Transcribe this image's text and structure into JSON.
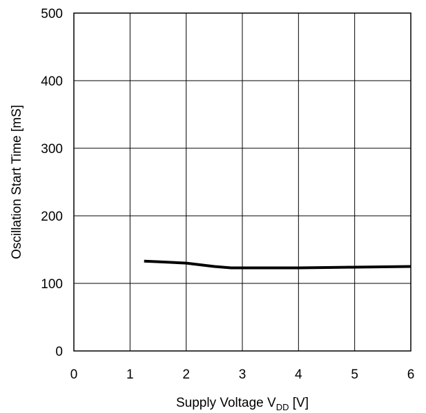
{
  "chart_data": {
    "type": "line",
    "title": "",
    "xlabel": {
      "main": "Supply Voltage V",
      "sub": "DD",
      "unit": " [V]"
    },
    "ylabel": "Oscillation Start Time [mS]",
    "xlim": [
      0,
      6
    ],
    "ylim": [
      0,
      500
    ],
    "xticks": [
      "0",
      "1",
      "2",
      "3",
      "4",
      "5",
      "6"
    ],
    "yticks": [
      "0",
      "100",
      "200",
      "300",
      "400",
      "500"
    ],
    "grid": true,
    "legend": "none",
    "series": [
      {
        "color": "#000000",
        "x": [
          1.25,
          1.5,
          2.0,
          2.5,
          2.8,
          3.0,
          3.5,
          4.0,
          4.5,
          5.0,
          5.5,
          6.0
        ],
        "y": [
          133,
          132,
          130,
          125,
          123,
          123,
          123,
          123,
          123.5,
          124,
          124.5,
          125
        ]
      }
    ]
  }
}
